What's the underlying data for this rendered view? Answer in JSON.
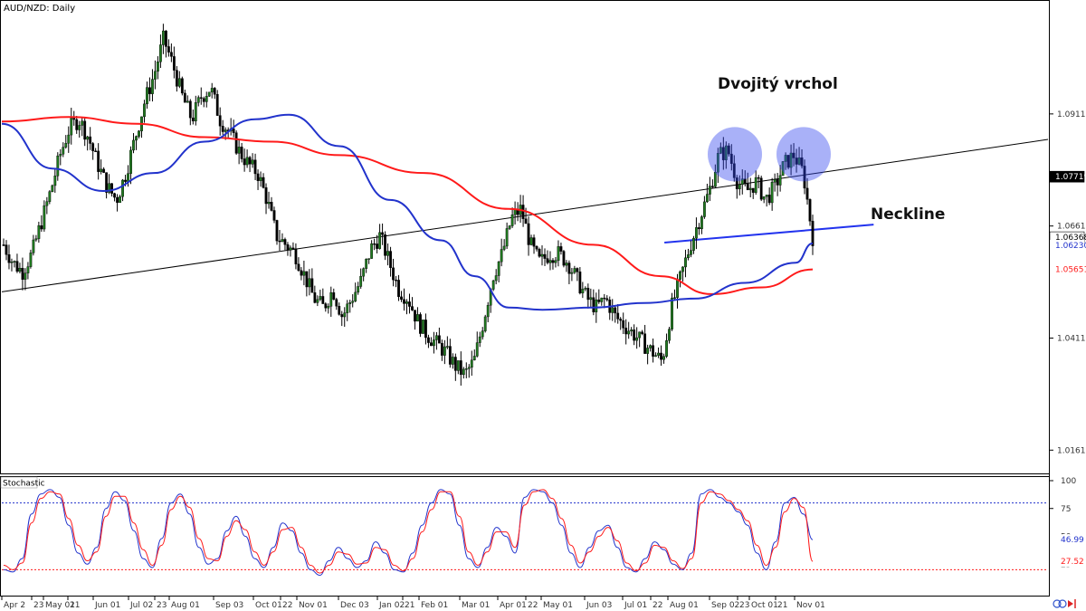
{
  "header": {
    "symbol_label": "AUD/NZD: Daily",
    "indicator_label": "Stochastic"
  },
  "annotations": {
    "double_top": "Dvojitý vrchol",
    "neckline": "Neckline"
  },
  "chart_data": [
    {
      "type": "candlestick",
      "title": "AUD/NZD: Daily",
      "ylim": [
        1.0112,
        1.1162
      ],
      "y_ticks": [
        "1.09119",
        "1.06619",
        "1.04119",
        "1.01619"
      ],
      "y_tick_values": [
        1.09119,
        1.06619,
        1.04119,
        1.01619
      ],
      "price_labels": [
        {
          "label": "1.07719",
          "value": 1.07719,
          "color": "#000000"
        },
        {
          "label": "1.06368",
          "value": 1.06368,
          "color": "#000000"
        },
        {
          "label": "1.06230",
          "value": 1.0623,
          "color": "#2233cc"
        },
        {
          "label": "1.05651",
          "value": 1.05651,
          "color": "#ff1a1a"
        }
      ],
      "x_ticks": [
        "Apr 2",
        "23",
        "May 01",
        "21",
        "Jun 01",
        "Jul 02",
        "23",
        "Aug 01",
        "Sep 03",
        "Oct 01",
        "22",
        "Nov 01",
        "Dec 03",
        "Jan 02",
        "21",
        "Feb 01",
        "Mar 01",
        "Apr 01",
        "22",
        "May 01",
        "Jun 03",
        "Jul 01",
        "22",
        "Aug 01",
        "Sep 02",
        "23",
        "Oct 01",
        "21",
        "Nov 01"
      ],
      "close_path": [
        1.062,
        1.058,
        1.056,
        1.06,
        1.067,
        1.074,
        1.082,
        1.088,
        1.09,
        1.086,
        1.08,
        1.075,
        1.072,
        1.078,
        1.086,
        1.094,
        1.1,
        1.108,
        1.102,
        1.095,
        1.09,
        1.095,
        1.097,
        1.09,
        1.087,
        1.083,
        1.08,
        1.078,
        1.072,
        1.064,
        1.062,
        1.06,
        1.055,
        1.05,
        1.048,
        1.052,
        1.046,
        1.05,
        1.054,
        1.061,
        1.064,
        1.058,
        1.052,
        1.05,
        1.045,
        1.042,
        1.04,
        1.038,
        1.035,
        1.033,
        1.036,
        1.045,
        1.055,
        1.06,
        1.068,
        1.07,
        1.062,
        1.058,
        1.06,
        1.06,
        1.058,
        1.054,
        1.05,
        1.048,
        1.05,
        1.046,
        1.044,
        1.042,
        1.04,
        1.038,
        1.036,
        1.048,
        1.055,
        1.062,
        1.068,
        1.074,
        1.082,
        1.083,
        1.076,
        1.074,
        1.076,
        1.072,
        1.075,
        1.08,
        1.082,
        1.078,
        1.0637
      ],
      "series": [
        {
          "name": "",
          "color": "#ff1a1a",
          "points": [
            [
              0,
              1.0895
            ],
            [
              8,
              1.0905
            ],
            [
              16,
              1.089
            ],
            [
              24,
              1.086
            ],
            [
              32,
              1.085
            ],
            [
              40,
              1.082
            ],
            [
              50,
              1.078
            ],
            [
              60,
              1.07
            ],
            [
              70,
              1.062
            ],
            [
              78,
              1.055
            ],
            [
              84,
              1.051
            ],
            [
              90,
              1.0525
            ],
            [
              96,
              1.0565
            ]
          ]
        },
        {
          "name": "",
          "color": "#2233cc",
          "points": [
            [
              0,
              1.089
            ],
            [
              6,
              1.079
            ],
            [
              12,
              1.074
            ],
            [
              18,
              1.078
            ],
            [
              24,
              1.085
            ],
            [
              30,
              1.09
            ],
            [
              34,
              1.091
            ],
            [
              40,
              1.084
            ],
            [
              46,
              1.072
            ],
            [
              52,
              1.063
            ],
            [
              56,
              1.055
            ],
            [
              60,
              1.048
            ],
            [
              64,
              1.0475
            ],
            [
              70,
              1.048
            ],
            [
              76,
              1.049
            ],
            [
              82,
              1.05
            ],
            [
              88,
              1.0535
            ],
            [
              94,
              1.058
            ],
            [
              96,
              1.0623
            ]
          ]
        }
      ],
      "trendlines": [
        {
          "name": "",
          "color": "#000000",
          "from": [
            0,
            1.0515
          ],
          "to": [
            120,
            1.0855
          ]
        },
        {
          "name": "",
          "color": "#2233ee",
          "from": [
            76,
            1.0625
          ],
          "to": [
            100,
            1.0665
          ]
        }
      ]
    },
    {
      "type": "line",
      "title": "Stochastic",
      "ylim": [
        0,
        100
      ],
      "y_ticks": [
        "100",
        "75",
        "50",
        "25"
      ],
      "y_tick_values": [
        100,
        75,
        50,
        25
      ],
      "levels": [
        {
          "value": 80,
          "color": "#2233cc"
        },
        {
          "value": 20,
          "color": "#ff1a1a"
        }
      ],
      "value_labels": [
        {
          "label": "46.99",
          "value": 46.99,
          "color": "#2233cc"
        },
        {
          "label": "27.52",
          "value": 27.52,
          "color": "#ff1a1a"
        }
      ],
      "series": [
        {
          "name": "",
          "color": "#2233cc",
          "values": [
            20,
            18,
            30,
            70,
            88,
            92,
            85,
            60,
            35,
            25,
            40,
            75,
            90,
            82,
            55,
            30,
            22,
            48,
            80,
            88,
            70,
            40,
            25,
            30,
            55,
            68,
            50,
            30,
            22,
            40,
            62,
            55,
            35,
            20,
            15,
            28,
            40,
            30,
            22,
            28,
            45,
            35,
            20,
            18,
            35,
            60,
            80,
            92,
            88,
            60,
            30,
            22,
            40,
            58,
            50,
            35,
            85,
            92,
            90,
            80,
            60,
            35,
            22,
            40,
            55,
            60,
            40,
            22,
            18,
            30,
            45,
            38,
            25,
            20,
            35,
            88,
            92,
            85,
            80,
            72,
            60,
            35,
            20,
            45,
            80,
            85,
            70,
            46.99
          ]
        },
        {
          "name": "",
          "color": "#ff1a1a",
          "values": [
            24,
            20,
            26,
            62,
            84,
            90,
            88,
            66,
            42,
            28,
            36,
            68,
            86,
            86,
            62,
            38,
            24,
            42,
            74,
            86,
            76,
            48,
            30,
            28,
            50,
            64,
            56,
            36,
            24,
            36,
            56,
            58,
            40,
            24,
            17,
            24,
            36,
            34,
            25,
            26,
            40,
            38,
            24,
            19,
            30,
            54,
            74,
            90,
            90,
            68,
            36,
            24,
            36,
            54,
            54,
            40,
            78,
            90,
            92,
            84,
            66,
            42,
            26,
            36,
            50,
            58,
            46,
            26,
            19,
            26,
            42,
            40,
            28,
            21,
            30,
            80,
            90,
            88,
            82,
            74,
            64,
            42,
            24,
            40,
            72,
            84,
            76,
            27.52
          ]
        }
      ]
    }
  ]
}
